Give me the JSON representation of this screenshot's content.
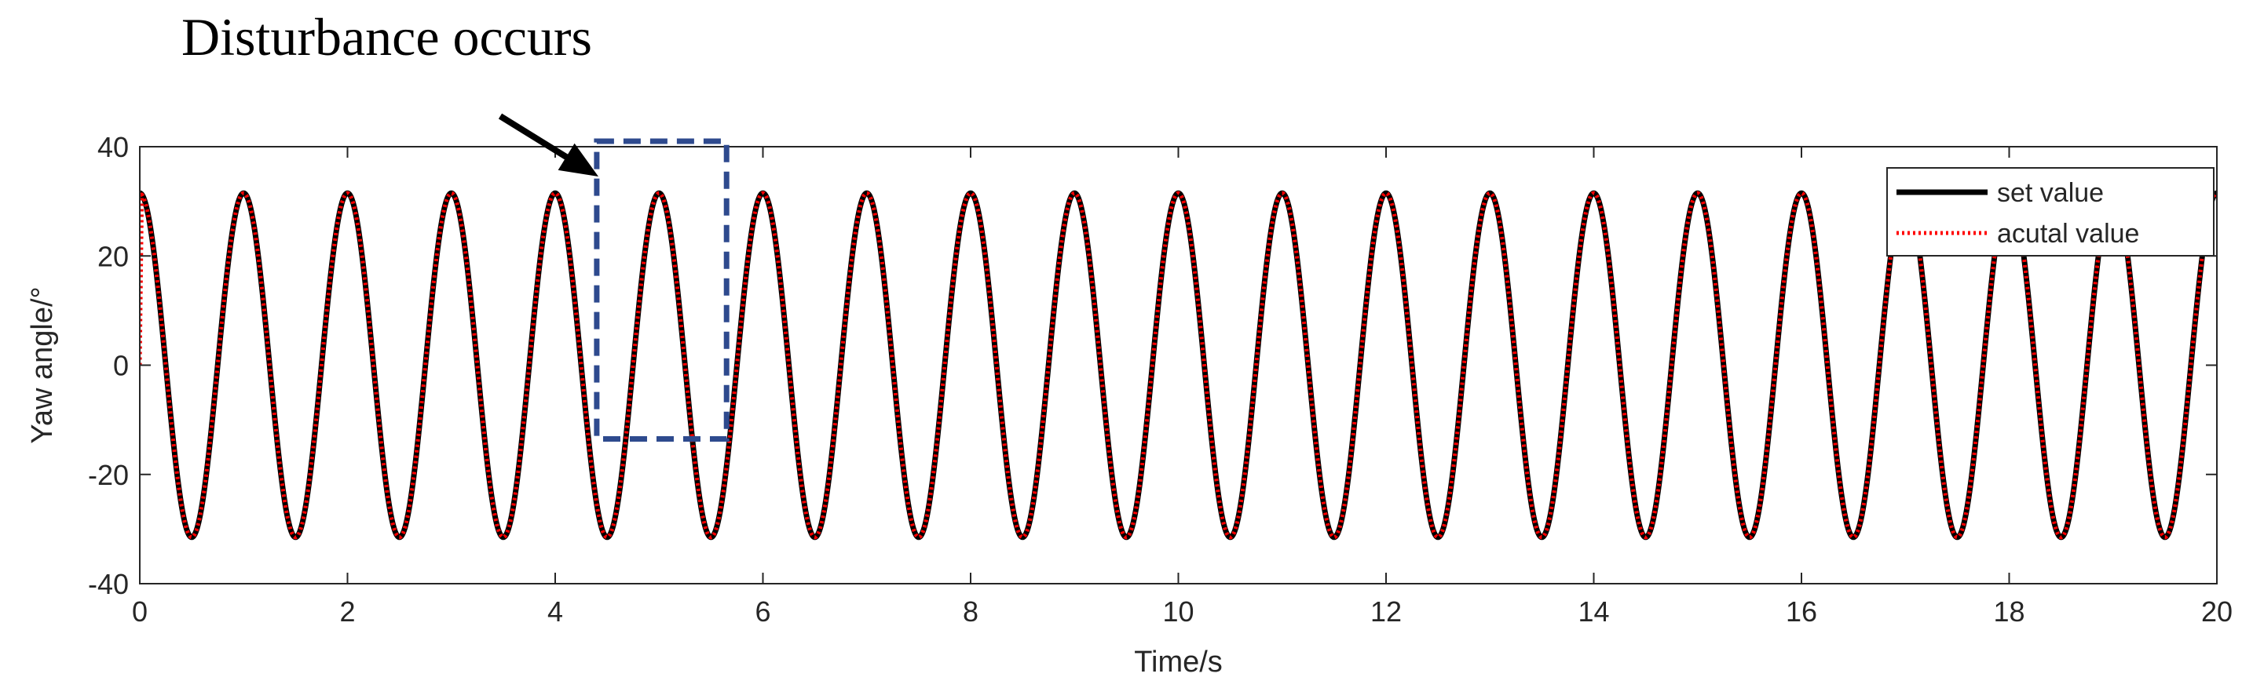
{
  "chart_data": {
    "type": "line",
    "title": "",
    "xlabel": "Time/s",
    "ylabel": "Yaw angle/°",
    "xlim": [
      0,
      20
    ],
    "ylim": [
      -40,
      40
    ],
    "xticks": [
      0,
      2,
      4,
      6,
      8,
      10,
      12,
      14,
      16,
      18,
      20
    ],
    "yticks": [
      -40,
      -20,
      0,
      20,
      40
    ],
    "grid": false,
    "legend_position": "top-right",
    "series": [
      {
        "name": "set value",
        "color": "#000000",
        "style": "solid",
        "function": "31.5*cos(2*pi*t)",
        "amplitude": 31.5,
        "period": 1,
        "x": [
          0,
          0.5,
          1,
          1.5,
          2,
          2.5,
          3,
          3.5,
          4,
          4.5,
          5,
          5.5,
          6,
          6.5,
          7,
          7.5,
          8,
          8.5,
          9,
          9.5,
          10,
          10.5,
          11,
          11.5,
          12,
          12.5,
          13,
          13.5,
          14,
          14.5,
          15,
          15.5,
          16,
          16.5,
          17,
          17.5,
          18,
          18.5,
          19,
          19.5,
          20
        ],
        "values": [
          31.5,
          -31.5,
          31.5,
          -31.5,
          31.5,
          -31.5,
          31.5,
          -31.5,
          31.5,
          -31.5,
          31.5,
          -31.5,
          31.5,
          -31.5,
          31.5,
          -31.5,
          31.5,
          -31.5,
          31.5,
          -31.5,
          31.5,
          -31.5,
          31.5,
          -31.5,
          31.5,
          -31.5,
          31.5,
          -31.5,
          31.5,
          -31.5,
          31.5,
          -31.5,
          31.5,
          -31.5,
          31.5,
          -31.5,
          31.5,
          -31.5,
          31.5,
          -31.5,
          31.5
        ]
      },
      {
        "name": "acutal value",
        "color": "#ff0000",
        "style": "dotted",
        "function": "31.5*cos(2*pi*t), starting from 0 at t=0",
        "start_value": 0,
        "amplitude": 31.5,
        "period": 1,
        "x": [
          0,
          0.02,
          0.5,
          1,
          1.5,
          2,
          2.5,
          3,
          3.5,
          4,
          4.5,
          5,
          5.5,
          6,
          6.5,
          7,
          7.5,
          8,
          8.5,
          9,
          9.5,
          10,
          10.5,
          11,
          11.5,
          12,
          12.5,
          13,
          13.5,
          14,
          14.5,
          15,
          15.5,
          16,
          16.5,
          17,
          17.5,
          18,
          18.5,
          19,
          19.5,
          20
        ],
        "values": [
          0,
          31,
          -31.5,
          31.5,
          -31.5,
          31.5,
          -31.5,
          31.5,
          -31.5,
          31.5,
          -31.5,
          31.5,
          -31.5,
          31.5,
          -31.5,
          31.5,
          -31.5,
          31.5,
          -31.5,
          31.5,
          -31.5,
          31.5,
          -31.5,
          31.5,
          -31.5,
          31.5,
          -31.5,
          31.5,
          -31.5,
          31.5,
          -31.5,
          31.5,
          -31.5,
          31.5,
          -31.5,
          31.5,
          -31.5,
          31.5,
          -31.5,
          31.5,
          -31.5,
          31.5
        ]
      }
    ],
    "annotations": [
      {
        "text": "Disturbance occurs",
        "box_x": [
          4.4,
          5.65
        ],
        "box_y": [
          -13.5,
          41
        ],
        "box_color": "#2e4a8e",
        "arrow_color": "#000000"
      }
    ]
  }
}
